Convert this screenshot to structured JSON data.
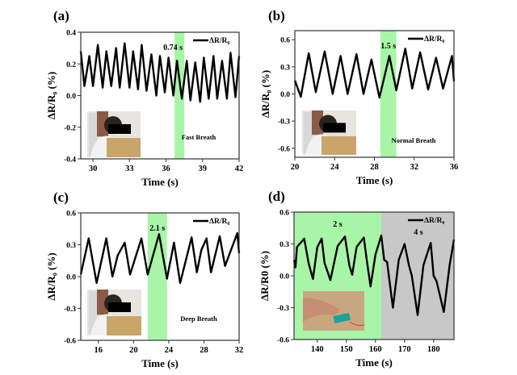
{
  "chart_data": [
    {
      "panel": "(a)",
      "type": "line",
      "xlabel": "Time (s)",
      "ylabel": "ΔR/R₀ (%)",
      "xlim": [
        29,
        42
      ],
      "ylim": [
        -0.4,
        0.4
      ],
      "xticks": [
        30,
        33,
        36,
        39,
        42
      ],
      "yticks": [
        -0.4,
        -0.2,
        0.0,
        0.2,
        0.4
      ],
      "ytick_labels": [
        "-0.4",
        "-0.2",
        "0.0",
        "0.2",
        "0.4"
      ],
      "legend": "ΔR/R₀",
      "legend_position": "top-right",
      "annotation": "Fast Breath",
      "highlights": [
        {
          "x0": 36.7,
          "x1": 37.5,
          "color": "#a8f5a8",
          "label": "0.74 s"
        }
      ],
      "series": [
        {
          "color": "#000000",
          "points": [
            [
              29.0,
              0.28
            ],
            [
              29.3,
              0.06
            ],
            [
              29.7,
              0.25
            ],
            [
              30.0,
              0.06
            ],
            [
              30.4,
              0.32
            ],
            [
              30.8,
              0.05
            ],
            [
              31.1,
              0.28
            ],
            [
              31.5,
              0.06
            ],
            [
              31.9,
              0.3
            ],
            [
              32.2,
              0.05
            ],
            [
              32.6,
              0.33
            ],
            [
              33.0,
              0.05
            ],
            [
              33.3,
              0.28
            ],
            [
              33.7,
              0.04
            ],
            [
              34.0,
              0.32
            ],
            [
              34.4,
              0.03
            ],
            [
              34.8,
              0.26
            ],
            [
              35.2,
              0.0
            ],
            [
              35.5,
              0.25
            ],
            [
              35.9,
              0.02
            ],
            [
              36.2,
              0.24
            ],
            [
              36.6,
              0.0
            ],
            [
              36.9,
              0.22
            ],
            [
              37.3,
              -0.02
            ],
            [
              37.7,
              0.22
            ],
            [
              38.0,
              -0.03
            ],
            [
              38.4,
              0.21
            ],
            [
              38.8,
              -0.04
            ],
            [
              39.1,
              0.24
            ],
            [
              39.5,
              -0.02
            ],
            [
              39.9,
              0.25
            ],
            [
              40.2,
              -0.02
            ],
            [
              40.6,
              0.22
            ],
            [
              41.0,
              -0.02
            ],
            [
              41.3,
              0.27
            ],
            [
              41.7,
              -0.01
            ],
            [
              42.0,
              0.25
            ]
          ]
        }
      ]
    },
    {
      "panel": "(b)",
      "type": "line",
      "xlabel": "Time (s)",
      "ylabel": "ΔR/R₀ (%)",
      "xlim": [
        20,
        36
      ],
      "ylim": [
        -0.7,
        0.7
      ],
      "xticks": [
        20,
        24,
        28,
        32,
        36
      ],
      "yticks": [
        -0.6,
        -0.3,
        0.0,
        0.3,
        0.6
      ],
      "ytick_labels": [
        "-0.6",
        "-0.3",
        "0.0",
        "0.3",
        "0.6"
      ],
      "legend": "ΔR/R₀",
      "legend_position": "top-right",
      "annotation": "Normal Breath",
      "highlights": [
        {
          "x0": 28.6,
          "x1": 30.2,
          "color": "#a8f5a8",
          "label": "1.5 s"
        }
      ],
      "series": [
        {
          "color": "#000000",
          "points": [
            [
              20.0,
              0.15
            ],
            [
              20.6,
              -0.03
            ],
            [
              21.4,
              0.45
            ],
            [
              22.1,
              0.02
            ],
            [
              23.0,
              0.47
            ],
            [
              23.8,
              0.0
            ],
            [
              24.6,
              0.42
            ],
            [
              25.3,
              0.0
            ],
            [
              26.2,
              0.44
            ],
            [
              26.9,
              0.0
            ],
            [
              27.7,
              0.38
            ],
            [
              28.5,
              -0.04
            ],
            [
              29.5,
              0.42
            ],
            [
              30.2,
              0.04
            ],
            [
              31.1,
              0.5
            ],
            [
              31.8,
              0.06
            ],
            [
              32.6,
              0.46
            ],
            [
              33.4,
              0.05
            ],
            [
              34.2,
              0.4
            ],
            [
              34.9,
              0.06
            ],
            [
              35.8,
              0.42
            ],
            [
              36.0,
              0.14
            ]
          ]
        }
      ]
    },
    {
      "panel": "(c)",
      "type": "line",
      "xlabel": "Time (s)",
      "ylabel": "ΔR/R₀ (%)",
      "xlim": [
        14,
        32
      ],
      "ylim": [
        -0.6,
        0.6
      ],
      "xticks": [
        16,
        20,
        24,
        28,
        32
      ],
      "yticks": [
        -0.6,
        -0.3,
        0.0,
        0.3,
        0.6
      ],
      "ytick_labels": [
        "-0.6",
        "-0.3",
        "0.0",
        "0.3",
        "0.6"
      ],
      "legend": "ΔR/R₀",
      "legend_position": "top-right",
      "annotation": "Deep Breath",
      "highlights": [
        {
          "x0": 21.6,
          "x1": 23.8,
          "color": "#a8f5a8",
          "label": "2.1 s"
        }
      ],
      "series": [
        {
          "color": "#000000",
          "points": [
            [
              14.0,
              0.02
            ],
            [
              14.9,
              0.36
            ],
            [
              15.8,
              -0.06
            ],
            [
              16.9,
              0.36
            ],
            [
              17.6,
              0.0
            ],
            [
              18.2,
              0.2
            ],
            [
              19.0,
              0.32
            ],
            [
              19.6,
              0.02
            ],
            [
              20.9,
              0.36
            ],
            [
              21.6,
              0.02
            ],
            [
              22.9,
              0.4
            ],
            [
              23.8,
              -0.02
            ],
            [
              24.6,
              0.32
            ],
            [
              25.3,
              -0.06
            ],
            [
              26.6,
              0.37
            ],
            [
              27.2,
              0.04
            ],
            [
              27.7,
              0.25
            ],
            [
              28.3,
              0.36
            ],
            [
              28.8,
              0.04
            ],
            [
              29.8,
              0.38
            ],
            [
              30.4,
              0.1
            ],
            [
              31.8,
              0.41
            ],
            [
              32.0,
              0.22
            ]
          ]
        }
      ]
    },
    {
      "panel": "(d)",
      "type": "line",
      "xlabel": "Time (s)",
      "ylabel": "ΔR/R0 (%)",
      "xlim": [
        132,
        187
      ],
      "ylim": [
        -0.6,
        0.6
      ],
      "xticks": [
        140,
        150,
        160,
        170,
        180
      ],
      "yticks": [
        -0.6,
        -0.3,
        0.0,
        0.3,
        0.6
      ],
      "ytick_labels": [
        "-0.6",
        "-0.3",
        "0.0",
        "0.3",
        "0.6"
      ],
      "legend": "ΔR/R₀",
      "legend_position": "top-right",
      "annotation": "",
      "highlights": [
        {
          "x0": 132,
          "x1": 162,
          "color": "#a8f5a8",
          "label": "2 s"
        },
        {
          "x0": 162,
          "x1": 187,
          "color": "#c8c8c8",
          "label": "4 s"
        }
      ],
      "series": [
        {
          "color": "#000000",
          "points": [
            [
              132,
              0.15
            ],
            [
              132.5,
              0.08
            ],
            [
              133,
              0.27
            ],
            [
              135.5,
              0.35
            ],
            [
              137,
              0.12
            ],
            [
              138.5,
              -0.03
            ],
            [
              140,
              0.27
            ],
            [
              141.5,
              0.35
            ],
            [
              142.5,
              0.12
            ],
            [
              144.5,
              -0.04
            ],
            [
              147,
              0.28
            ],
            [
              149.5,
              0.37
            ],
            [
              151,
              0.1
            ],
            [
              152,
              0.01
            ],
            [
              153.5,
              0.27
            ],
            [
              156,
              0.36
            ],
            [
              157,
              0.15
            ],
            [
              158.3,
              -0.1
            ],
            [
              160,
              0.2
            ],
            [
              162,
              0.38
            ],
            [
              163,
              0.15
            ],
            [
              164,
              0.13
            ],
            [
              166,
              -0.3
            ],
            [
              168,
              0.15
            ],
            [
              170,
              0.3
            ],
            [
              171.5,
              0.1
            ],
            [
              172.5,
              0.0
            ],
            [
              174.5,
              -0.37
            ],
            [
              176.5,
              0.1
            ],
            [
              179,
              0.31
            ],
            [
              180,
              0.0
            ],
            [
              181,
              -0.05
            ],
            [
              183.5,
              -0.34
            ],
            [
              185.5,
              0.1
            ],
            [
              187,
              0.34
            ]
          ]
        }
      ]
    }
  ]
}
